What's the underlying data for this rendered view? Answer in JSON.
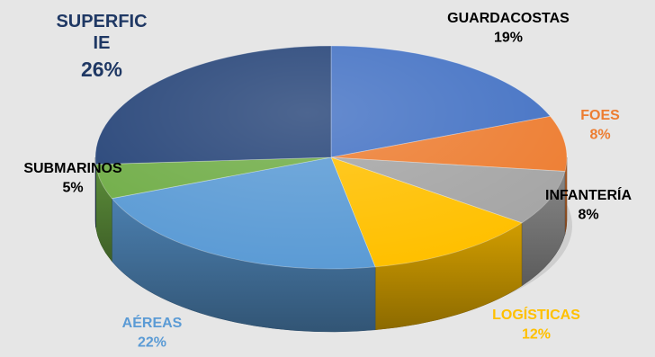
{
  "chart_data": {
    "type": "pie",
    "style": "3d-tilted",
    "start_angle_deg": 0,
    "direction": "clockwise",
    "slices": [
      {
        "label": "GUARDACOSTAS",
        "value": 19,
        "pct_label": "19%",
        "color": "#4472c4",
        "label_color": "#000000"
      },
      {
        "label": "FOES",
        "value": 8,
        "pct_label": "8%",
        "color": "#ed7d31",
        "label_color": "#ed7d31"
      },
      {
        "label": "INFANTERÍA",
        "value": 8,
        "pct_label": "8%",
        "color": "#a5a5a5",
        "label_color": "#000000"
      },
      {
        "label": "LOGÍSTICAS",
        "value": 12,
        "pct_label": "12%",
        "color": "#ffc000",
        "label_color": "#ffc000"
      },
      {
        "label": "AÉREAS",
        "value": 22,
        "pct_label": "22%",
        "color": "#5b9bd5",
        "label_color": "#5b9bd5"
      },
      {
        "label": "SUBMARINOS",
        "value": 5,
        "pct_label": "5%",
        "color": "#70ad47",
        "label_color": "#000000"
      },
      {
        "label": "SUPERFICIE",
        "value": 26,
        "pct_label": "26%",
        "color": "#264478",
        "label_color": "#1f3864"
      }
    ]
  }
}
